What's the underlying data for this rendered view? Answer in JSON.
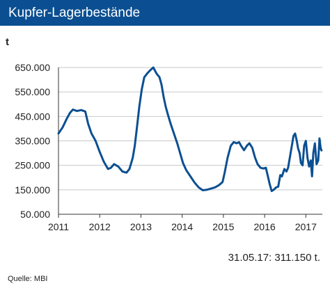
{
  "header": {
    "title": "Kupfer-Lagerbestände"
  },
  "unit_label": "t",
  "footnote": "31.05.17: 311.150 t.",
  "source": "Quelle:  MBI",
  "colors": {
    "title_bar": "#0b4f92",
    "line": "#0b4f92",
    "grid": "#c8c8c8",
    "axis": "#333333"
  },
  "chart_data": {
    "type": "line",
    "title": "Kupfer-Lagerbestände",
    "ylabel": "t",
    "ylim": [
      50000,
      650000
    ],
    "xlim": [
      2011.0,
      2017.4
    ],
    "grid": "horizontal",
    "y_ticks": [
      {
        "value": 50000,
        "label": "50.000"
      },
      {
        "value": 150000,
        "label": "150.000"
      },
      {
        "value": 250000,
        "label": "250.000"
      },
      {
        "value": 350000,
        "label": "350.000"
      },
      {
        "value": 450000,
        "label": "450.000"
      },
      {
        "value": 550000,
        "label": "550.000"
      },
      {
        "value": 650000,
        "label": "650.000"
      }
    ],
    "x_ticks": [
      {
        "value": 2011,
        "label": "2011"
      },
      {
        "value": 2012,
        "label": "2012"
      },
      {
        "value": 2013,
        "label": "2013"
      },
      {
        "value": 2014,
        "label": "2014"
      },
      {
        "value": 2015,
        "label": "2015"
      },
      {
        "value": 2016,
        "label": "2016"
      },
      {
        "value": 2017,
        "label": "2017"
      }
    ],
    "series": [
      {
        "x": [
          2011.0,
          2011.1,
          2011.2,
          2011.28,
          2011.35,
          2011.45,
          2011.55,
          2011.65,
          2011.72,
          2011.8,
          2011.9,
          2012.0,
          2012.1,
          2012.2,
          2012.27,
          2012.35,
          2012.45,
          2012.55,
          2012.65,
          2012.72,
          2012.8,
          2012.85,
          2012.9,
          2012.96,
          2013.02,
          2013.08,
          2013.15,
          2013.22,
          2013.3,
          2013.38,
          2013.45,
          2013.5,
          2013.55,
          2013.6,
          2013.65,
          2013.72,
          2013.8,
          2013.88,
          2013.95,
          2014.02,
          2014.1,
          2014.2,
          2014.3,
          2014.4,
          2014.5,
          2014.6,
          2014.7,
          2014.8,
          2014.9,
          2014.98,
          2015.03,
          2015.1,
          2015.18,
          2015.25,
          2015.32,
          2015.38,
          2015.43,
          2015.5,
          2015.57,
          2015.63,
          2015.7,
          2015.77,
          2015.83,
          2015.9,
          2015.97,
          2016.03,
          2016.08,
          2016.12,
          2016.17,
          2016.22,
          2016.28,
          2016.33,
          2016.38,
          2016.42,
          2016.48,
          2016.53,
          2016.57,
          2016.62,
          2016.67,
          2016.7,
          2016.74,
          2016.78,
          2016.81,
          2016.85,
          2016.88,
          2016.92,
          2016.96,
          2017.0,
          2017.04,
          2017.08,
          2017.12,
          2017.15,
          2017.18,
          2017.22,
          2017.26,
          2017.3,
          2017.33,
          2017.36,
          2017.38
        ],
        "y": [
          380000,
          405000,
          440000,
          465000,
          478000,
          472000,
          476000,
          470000,
          420000,
          380000,
          350000,
          305000,
          265000,
          235000,
          240000,
          255000,
          245000,
          225000,
          220000,
          235000,
          280000,
          330000,
          400000,
          490000,
          560000,
          610000,
          625000,
          638000,
          650000,
          625000,
          610000,
          580000,
          530000,
          490000,
          460000,
          420000,
          380000,
          340000,
          300000,
          260000,
          230000,
          205000,
          180000,
          160000,
          148000,
          150000,
          155000,
          160000,
          170000,
          182000,
          220000,
          280000,
          330000,
          345000,
          340000,
          345000,
          330000,
          312000,
          330000,
          340000,
          322000,
          280000,
          255000,
          240000,
          237000,
          240000,
          205000,
          175000,
          145000,
          150000,
          160000,
          163000,
          210000,
          205000,
          235000,
          225000,
          240000,
          290000,
          340000,
          370000,
          380000,
          350000,
          320000,
          300000,
          260000,
          250000,
          330000,
          350000,
          280000,
          245000,
          270000,
          205000,
          300000,
          340000,
          255000,
          270000,
          360000,
          320000,
          311150
        ]
      }
    ]
  }
}
